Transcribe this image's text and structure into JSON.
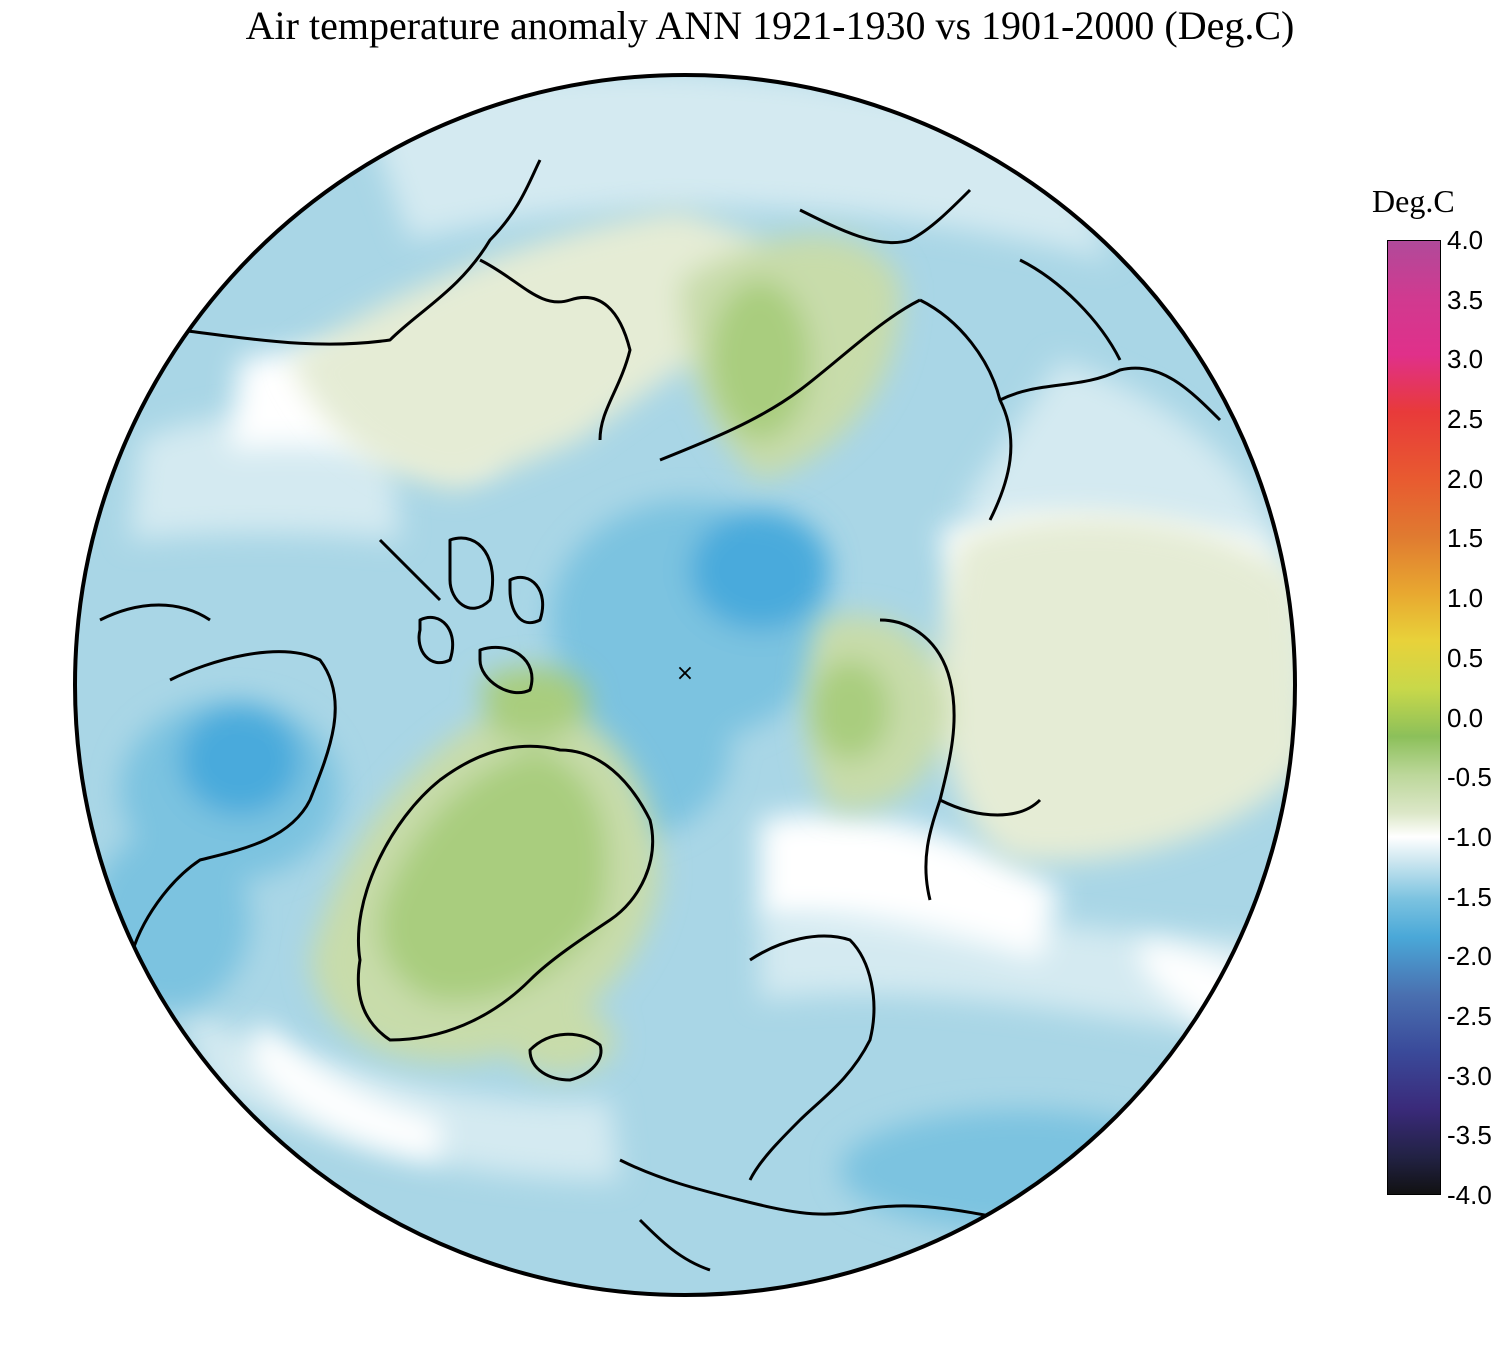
{
  "title": "Air temperature anomaly ANN 1921-1930 vs 1901-2000 (Deg.C)",
  "legend": {
    "unit": "Deg.C",
    "ticks": [
      "4.0",
      "3.5",
      "3.0",
      "2.5",
      "2.0",
      "1.5",
      "1.0",
      "0.5",
      "0.0",
      "-0.5",
      "-1.0",
      "-1.5",
      "-2.0",
      "-2.5",
      "-3.0",
      "-3.5",
      "-4.0"
    ],
    "range": [
      -4.0,
      4.0
    ],
    "colors": {
      "top": "#b04a9a",
      "pink": "#e0308a",
      "red": "#e83a3a",
      "orange": "#e07a30",
      "yellow": "#e8d23a",
      "green": "#8cc05a",
      "light_green": "#dce7c8",
      "white": "#ffffff",
      "light_blue": "#a9d5e5",
      "blue": "#4aa8d8",
      "dark_blue": "#3a3a8a",
      "bottom": "#111111"
    }
  },
  "map": {
    "projection": "north polar stereographic",
    "pole_marker": "×",
    "colors": {
      "ocean_blue": "#a9d6e6",
      "mid_blue": "#7cc3e0",
      "deep_blue": "#4aaadc",
      "pale_blue": "#d4eaf1",
      "neutral": "#ffffff",
      "light_green": "#e5ecd5",
      "green": "#c8dcaa",
      "mid_green": "#a9cd7e",
      "strong_green": "#8bbd5a",
      "coast": "#000000"
    }
  }
}
